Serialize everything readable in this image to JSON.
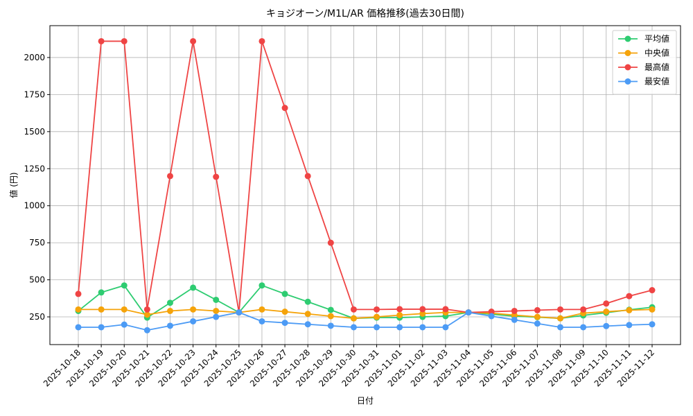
{
  "chart_data": {
    "type": "line",
    "title": "キョジオーン/M1L/AR 価格推移(過去30日間)",
    "x_label": "日付",
    "y_label": "値 (円)",
    "categories": [
      "2025-10-18",
      "2025-10-19",
      "2025-10-20",
      "2025-10-21",
      "2025-10-22",
      "2025-10-23",
      "2025-10-24",
      "2025-10-25",
      "2025-10-26",
      "2025-10-27",
      "2025-10-28",
      "2025-10-29",
      "2025-10-30",
      "2025-10-31",
      "2025-11-01",
      "2025-11-02",
      "2025-11-03",
      "2025-11-04",
      "2025-11-05",
      "2025-11-06",
      "2025-11-07",
      "2025-11-08",
      "2025-11-09",
      "2025-11-10",
      "2025-11-11",
      "2025-11-12"
    ],
    "series": [
      {
        "name": "平均値",
        "color": "#2ecc71",
        "values": [
          290,
          415,
          462,
          245,
          345,
          447,
          365,
          280,
          462,
          405,
          352,
          297,
          240,
          245,
          245,
          250,
          255,
          280,
          268,
          255,
          248,
          240,
          260,
          278,
          298,
          315
        ]
      },
      {
        "name": "中央値",
        "color": "#f5a30a",
        "values": [
          300,
          300,
          300,
          265,
          290,
          300,
          290,
          280,
          300,
          285,
          270,
          255,
          240,
          250,
          262,
          272,
          280,
          280,
          275,
          262,
          250,
          240,
          275,
          285,
          295,
          300
        ]
      },
      {
        "name": "最高値",
        "color": "#ef4444",
        "values": [
          405,
          2110,
          2110,
          300,
          1200,
          2110,
          1195,
          280,
          2110,
          1660,
          1200,
          750,
          300,
          300,
          302,
          302,
          302,
          280,
          285,
          290,
          295,
          300,
          300,
          340,
          390,
          430
        ]
      },
      {
        "name": "最安値",
        "color": "#4c9bf5",
        "values": [
          180,
          180,
          198,
          160,
          190,
          220,
          250,
          280,
          220,
          210,
          200,
          190,
          180,
          180,
          180,
          180,
          180,
          280,
          255,
          230,
          205,
          180,
          180,
          188,
          195,
          200
        ]
      }
    ],
    "ylim": [
      63,
      2215
    ],
    "yticks": [
      250,
      500,
      750,
      1000,
      1250,
      1500,
      1750,
      2000
    ],
    "grid": true,
    "legend": "upper right"
  }
}
